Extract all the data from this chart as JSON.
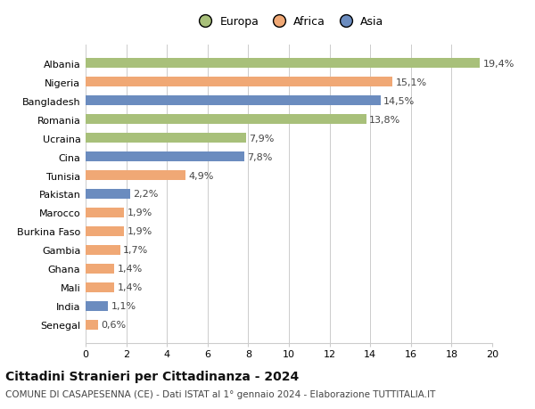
{
  "categories": [
    "Albania",
    "Nigeria",
    "Bangladesh",
    "Romania",
    "Ucraina",
    "Cina",
    "Tunisia",
    "Pakistan",
    "Marocco",
    "Burkina Faso",
    "Gambia",
    "Ghana",
    "Mali",
    "India",
    "Senegal"
  ],
  "values": [
    19.4,
    15.1,
    14.5,
    13.8,
    7.9,
    7.8,
    4.9,
    2.2,
    1.9,
    1.9,
    1.7,
    1.4,
    1.4,
    1.1,
    0.6
  ],
  "labels": [
    "19,4%",
    "15,1%",
    "14,5%",
    "13,8%",
    "7,9%",
    "7,8%",
    "4,9%",
    "2,2%",
    "1,9%",
    "1,9%",
    "1,7%",
    "1,4%",
    "1,4%",
    "1,1%",
    "0,6%"
  ],
  "continents": [
    "Europa",
    "Africa",
    "Asia",
    "Europa",
    "Europa",
    "Asia",
    "Africa",
    "Asia",
    "Africa",
    "Africa",
    "Africa",
    "Africa",
    "Africa",
    "Asia",
    "Africa"
  ],
  "continent_colors": {
    "Europa": "#a8c07a",
    "Africa": "#f0a875",
    "Asia": "#6b8cbf"
  },
  "xlim": [
    0,
    20
  ],
  "xticks": [
    0,
    2,
    4,
    6,
    8,
    10,
    12,
    14,
    16,
    18,
    20
  ],
  "title": "Cittadini Stranieri per Cittadinanza - 2024",
  "subtitle": "COMUNE DI CASAPESENNA (CE) - Dati ISTAT al 1° gennaio 2024 - Elaborazione TUTTITALIA.IT",
  "background_color": "#ffffff",
  "grid_color": "#cccccc",
  "bar_height": 0.55,
  "title_fontsize": 10,
  "subtitle_fontsize": 7.5,
  "label_fontsize": 8,
  "tick_fontsize": 8,
  "legend_fontsize": 9
}
